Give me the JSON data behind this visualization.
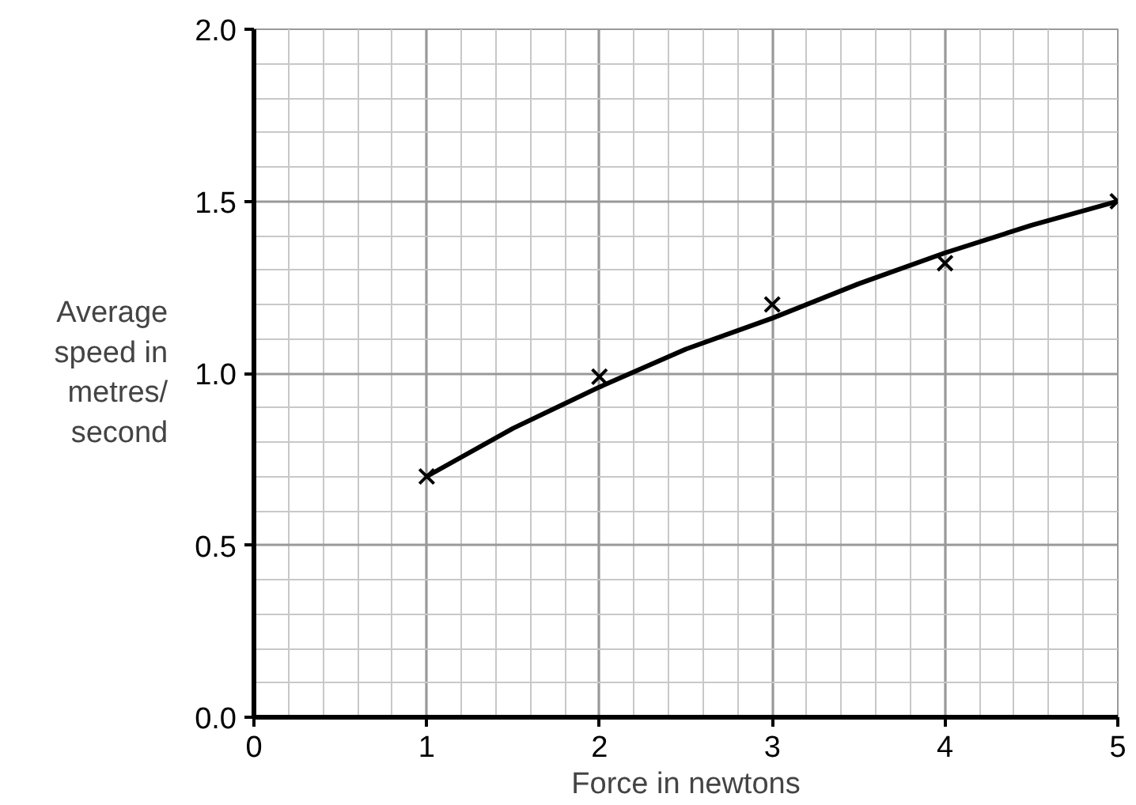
{
  "chart_data": {
    "type": "scatter",
    "xlabel": "Force in newtons",
    "ylabel": "Average\nspeed in\nmetres/\nsecond",
    "xlim": [
      0,
      5
    ],
    "ylim": [
      0,
      2.0
    ],
    "xticks": [
      0,
      1,
      2,
      3,
      4,
      5
    ],
    "yticks": [
      {
        "value": 0,
        "label": "0.0"
      },
      0.5,
      {
        "value": 1,
        "label": "1.0"
      },
      1.5,
      {
        "value": 2,
        "label": "2.0"
      }
    ],
    "grid": true,
    "marker": "cross",
    "series": [
      {
        "color": "#000000",
        "x": [
          1,
          2,
          3,
          4,
          5
        ],
        "values": [
          0.7,
          0.99,
          1.2,
          1.32,
          1.5
        ]
      },
      {
        "type": "line",
        "color": "#000000",
        "marker": "none",
        "x": [
          1,
          1.5,
          2,
          2.5,
          3,
          3.5,
          4,
          4.5,
          5
        ],
        "values": [
          0.7,
          0.84,
          0.96,
          1.07,
          1.16,
          1.26,
          1.35,
          1.43,
          1.5
        ]
      }
    ]
  }
}
